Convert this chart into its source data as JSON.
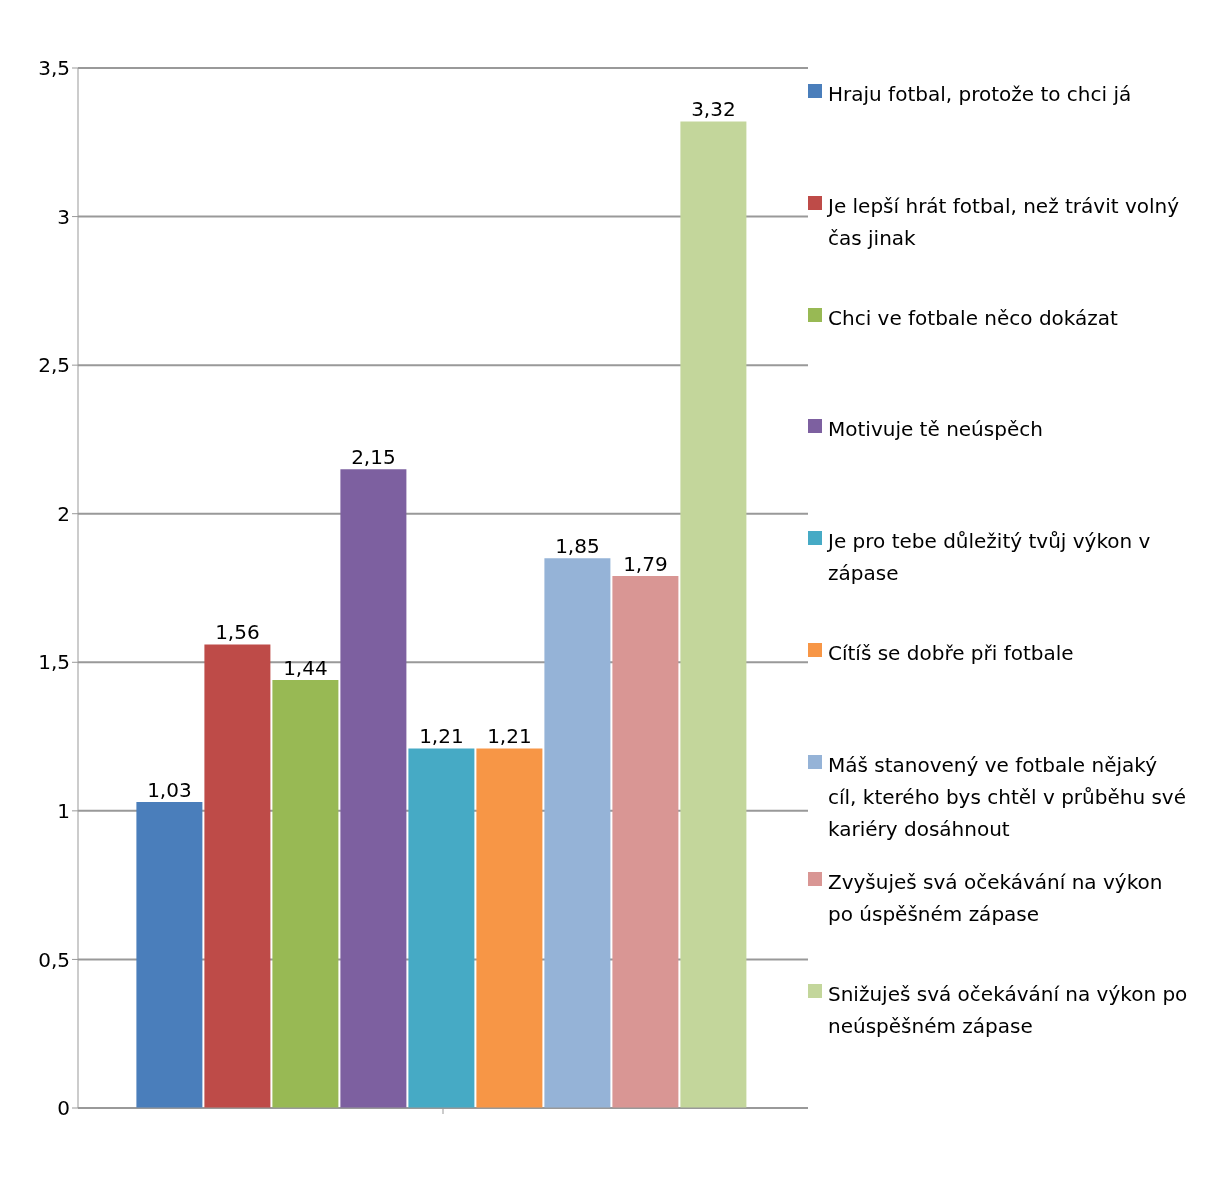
{
  "chart_data": {
    "type": "bar",
    "categories": [
      null
    ],
    "series": [
      {
        "name": "Hraju fotbal, protože to chci já",
        "color": "#4a7ebb",
        "values": [
          1.03
        ],
        "value_labels": [
          "1,03"
        ]
      },
      {
        "name": "Je lepší hrát fotbal, než trávit volný čas jinak",
        "color": "#be4b48",
        "values": [
          1.56
        ],
        "value_labels": [
          "1,56"
        ]
      },
      {
        "name": "Chci ve fotbale něco dokázat",
        "color": "#98b954",
        "values": [
          1.44
        ],
        "value_labels": [
          "1,44"
        ]
      },
      {
        "name": "Motivuje tě neúspěch",
        "color": "#7d60a0",
        "values": [
          2.15
        ],
        "value_labels": [
          "2,15"
        ]
      },
      {
        "name": "Je pro tebe důležitý tvůj výkon v zápase",
        "color": "#46aac5",
        "values": [
          1.21
        ],
        "value_labels": [
          "1,21"
        ]
      },
      {
        "name": "Cítíš se dobře při fotbale",
        "color": "#f79646",
        "values": [
          1.21
        ],
        "value_labels": [
          "1,21"
        ]
      },
      {
        "name": "Máš stanovený ve fotbale nějaký cíl, kterého bys chtěl v průběhu své kariéry dosáhnout",
        "color": "#95b3d7",
        "values": [
          1.85
        ],
        "value_labels": [
          "1,85"
        ]
      },
      {
        "name": "Zvyšuješ svá očekávání na výkon po úspěšném zápase",
        "color": "#d99694",
        "values": [
          1.79
        ],
        "value_labels": [
          "1,79"
        ]
      },
      {
        "name": "Snižuješ svá očekávání na výkon po neúspěšném zápase",
        "color": "#c3d69b",
        "values": [
          3.32
        ],
        "value_labels": [
          "3,32"
        ]
      }
    ],
    "ylim": [
      0,
      3.5
    ],
    "yticks": [
      0,
      {
        "value": 0.5,
        "label": "0,5"
      },
      1,
      {
        "value": 1.5,
        "label": "1,5"
      },
      2,
      {
        "value": 2.5,
        "label": "2,5"
      },
      3,
      {
        "value": 3.5,
        "label": "3,5"
      }
    ],
    "grid": "y",
    "legend": "right"
  }
}
